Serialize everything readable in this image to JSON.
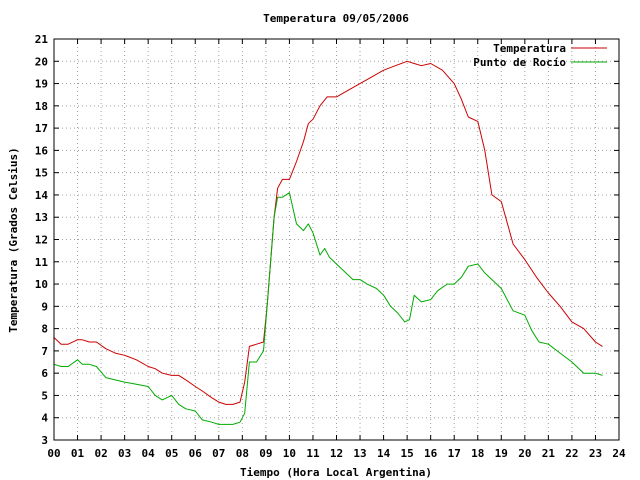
{
  "chart_data": {
    "type": "line",
    "title": "Temperatura 09/05/2006",
    "xlabel": "Tiempo (Hora Local Argentina)",
    "ylabel": "Temperatura (Grados Celsius)",
    "xlim": [
      0,
      24
    ],
    "ylim": [
      3,
      21
    ],
    "x_ticks": [
      "00",
      "01",
      "02",
      "03",
      "04",
      "05",
      "06",
      "07",
      "08",
      "09",
      "10",
      "11",
      "12",
      "13",
      "14",
      "15",
      "16",
      "17",
      "18",
      "19",
      "20",
      "21",
      "22",
      "23",
      "24"
    ],
    "y_ticks": [
      "3",
      "4",
      "5",
      "6",
      "7",
      "8",
      "9",
      "10",
      "11",
      "12",
      "13",
      "14",
      "15",
      "16",
      "17",
      "18",
      "19",
      "20",
      "21"
    ],
    "grid": true,
    "legend_position": "top-right",
    "series": [
      {
        "name": "Temperatura",
        "color": "#cc0000",
        "x": [
          0.0,
          0.3,
          0.6,
          1.0,
          1.2,
          1.5,
          1.8,
          2.2,
          2.6,
          3.0,
          3.5,
          4.0,
          4.3,
          4.6,
          5.0,
          5.3,
          5.6,
          6.0,
          6.3,
          6.7,
          7.0,
          7.3,
          7.6,
          7.9,
          8.1,
          8.3,
          8.6,
          8.9,
          9.05,
          9.2,
          9.35,
          9.5,
          9.7,
          10.0,
          10.3,
          10.6,
          10.8,
          11.0,
          11.3,
          11.6,
          12.0,
          12.5,
          13.0,
          13.5,
          14.0,
          14.5,
          15.0,
          15.3,
          15.6,
          16.0,
          16.5,
          17.0,
          17.3,
          17.6,
          18.0,
          18.3,
          18.6,
          19.0,
          19.5,
          20.0,
          20.5,
          21.0,
          21.5,
          22.0,
          22.5,
          23.0,
          23.3
        ],
        "values": [
          7.6,
          7.3,
          7.3,
          7.5,
          7.5,
          7.4,
          7.4,
          7.1,
          6.9,
          6.8,
          6.6,
          6.3,
          6.2,
          6.0,
          5.9,
          5.9,
          5.7,
          5.4,
          5.2,
          4.9,
          4.7,
          4.6,
          4.6,
          4.7,
          5.6,
          7.2,
          7.3,
          7.4,
          9.0,
          11.0,
          13.0,
          14.3,
          14.7,
          14.7,
          15.5,
          16.4,
          17.2,
          17.4,
          18.0,
          18.4,
          18.4,
          18.7,
          19.0,
          19.3,
          19.6,
          19.8,
          20.0,
          19.9,
          19.8,
          19.9,
          19.6,
          19.0,
          18.3,
          17.5,
          17.3,
          16.0,
          14.0,
          13.7,
          11.8,
          11.1,
          10.3,
          9.6,
          9.0,
          8.3,
          8.0,
          7.4,
          7.2
        ]
      },
      {
        "name": "Punto de Rocío",
        "color": "#00aa00",
        "x": [
          0.0,
          0.3,
          0.6,
          1.0,
          1.2,
          1.5,
          1.8,
          2.2,
          2.6,
          3.0,
          3.5,
          4.0,
          4.3,
          4.6,
          5.0,
          5.3,
          5.6,
          6.0,
          6.3,
          6.7,
          7.0,
          7.3,
          7.6,
          7.9,
          8.1,
          8.3,
          8.6,
          8.9,
          9.05,
          9.2,
          9.35,
          9.5,
          9.7,
          10.0,
          10.3,
          10.6,
          10.8,
          11.0,
          11.3,
          11.5,
          11.7,
          12.0,
          12.3,
          12.7,
          13.0,
          13.3,
          13.7,
          14.0,
          14.3,
          14.6,
          14.9,
          15.1,
          15.3,
          15.6,
          16.0,
          16.3,
          16.7,
          17.0,
          17.3,
          17.6,
          18.0,
          18.3,
          18.6,
          19.0,
          19.5,
          20.0,
          20.3,
          20.6,
          21.0,
          21.5,
          22.0,
          22.5,
          23.0,
          23.3
        ],
        "values": [
          6.4,
          6.3,
          6.3,
          6.6,
          6.4,
          6.4,
          6.3,
          5.8,
          5.7,
          5.6,
          5.5,
          5.4,
          5.0,
          4.8,
          5.0,
          4.6,
          4.4,
          4.3,
          3.9,
          3.8,
          3.7,
          3.7,
          3.7,
          3.8,
          4.2,
          6.5,
          6.5,
          7.0,
          9.0,
          11.0,
          13.0,
          13.9,
          13.9,
          14.1,
          12.7,
          12.4,
          12.7,
          12.3,
          11.3,
          11.6,
          11.2,
          10.9,
          10.6,
          10.2,
          10.2,
          10.0,
          9.8,
          9.5,
          9.0,
          8.7,
          8.3,
          8.4,
          9.5,
          9.2,
          9.3,
          9.7,
          10.0,
          10.0,
          10.3,
          10.8,
          10.9,
          10.5,
          10.2,
          9.8,
          8.8,
          8.6,
          7.9,
          7.4,
          7.3,
          6.9,
          6.5,
          6.0,
          6.0,
          5.9
        ]
      }
    ]
  }
}
